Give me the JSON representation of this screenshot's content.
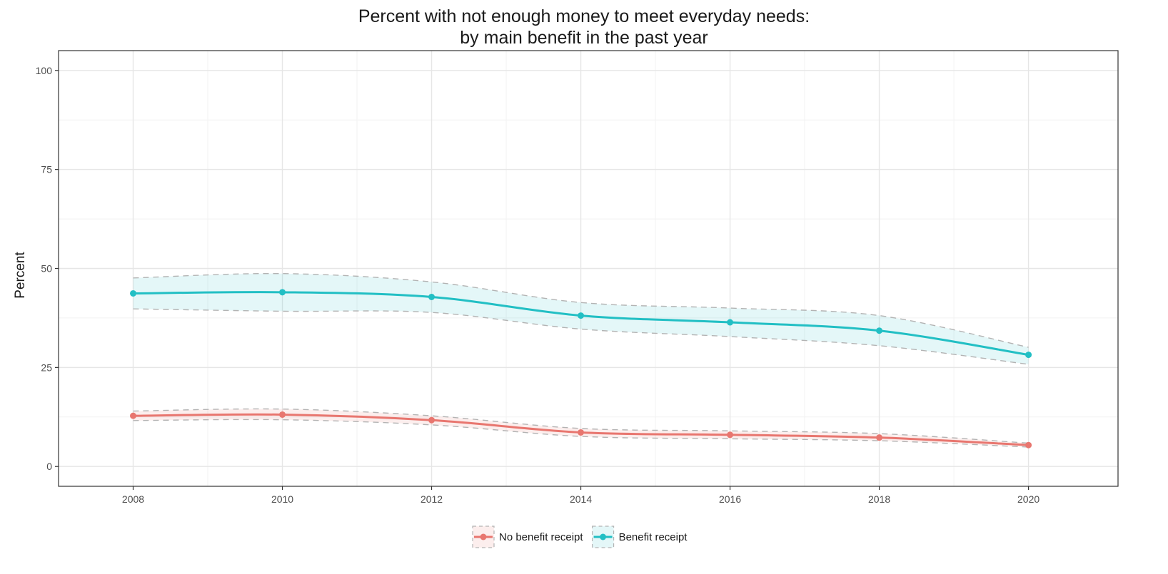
{
  "chart_data": {
    "type": "line",
    "title_line1": "Percent with not enough money to meet everyday needs:",
    "title_line2": "by main benefit in the past year",
    "xlabel": "",
    "ylabel": "Percent",
    "x": [
      2008,
      2010,
      2012,
      2014,
      2016,
      2018,
      2020
    ],
    "xlim": [
      2007,
      2021.2
    ],
    "ylim": [
      -5,
      105
    ],
    "xticks": [
      2008,
      2010,
      2012,
      2014,
      2016,
      2018,
      2020
    ],
    "yticks": [
      0,
      25,
      50,
      75,
      100
    ],
    "grid": true,
    "legend_position": "bottom",
    "series": [
      {
        "name": "No benefit receipt",
        "color": "#e8766f",
        "values": [
          12.8,
          13.1,
          11.7,
          8.6,
          8.0,
          7.3,
          5.4
        ],
        "ci_upper": [
          14.0,
          14.5,
          12.8,
          9.6,
          9.0,
          8.3,
          5.9
        ],
        "ci_lower": [
          11.6,
          11.8,
          10.5,
          7.6,
          7.0,
          6.5,
          4.9
        ]
      },
      {
        "name": "Benefit receipt",
        "color": "#22bfc4",
        "values": [
          43.7,
          44.0,
          42.8,
          38.1,
          36.4,
          34.3,
          28.2
        ],
        "ci_upper": [
          47.6,
          48.7,
          46.6,
          41.4,
          40.0,
          38.1,
          30.1
        ],
        "ci_lower": [
          39.8,
          39.2,
          38.9,
          34.7,
          32.8,
          30.5,
          25.8
        ]
      }
    ]
  }
}
